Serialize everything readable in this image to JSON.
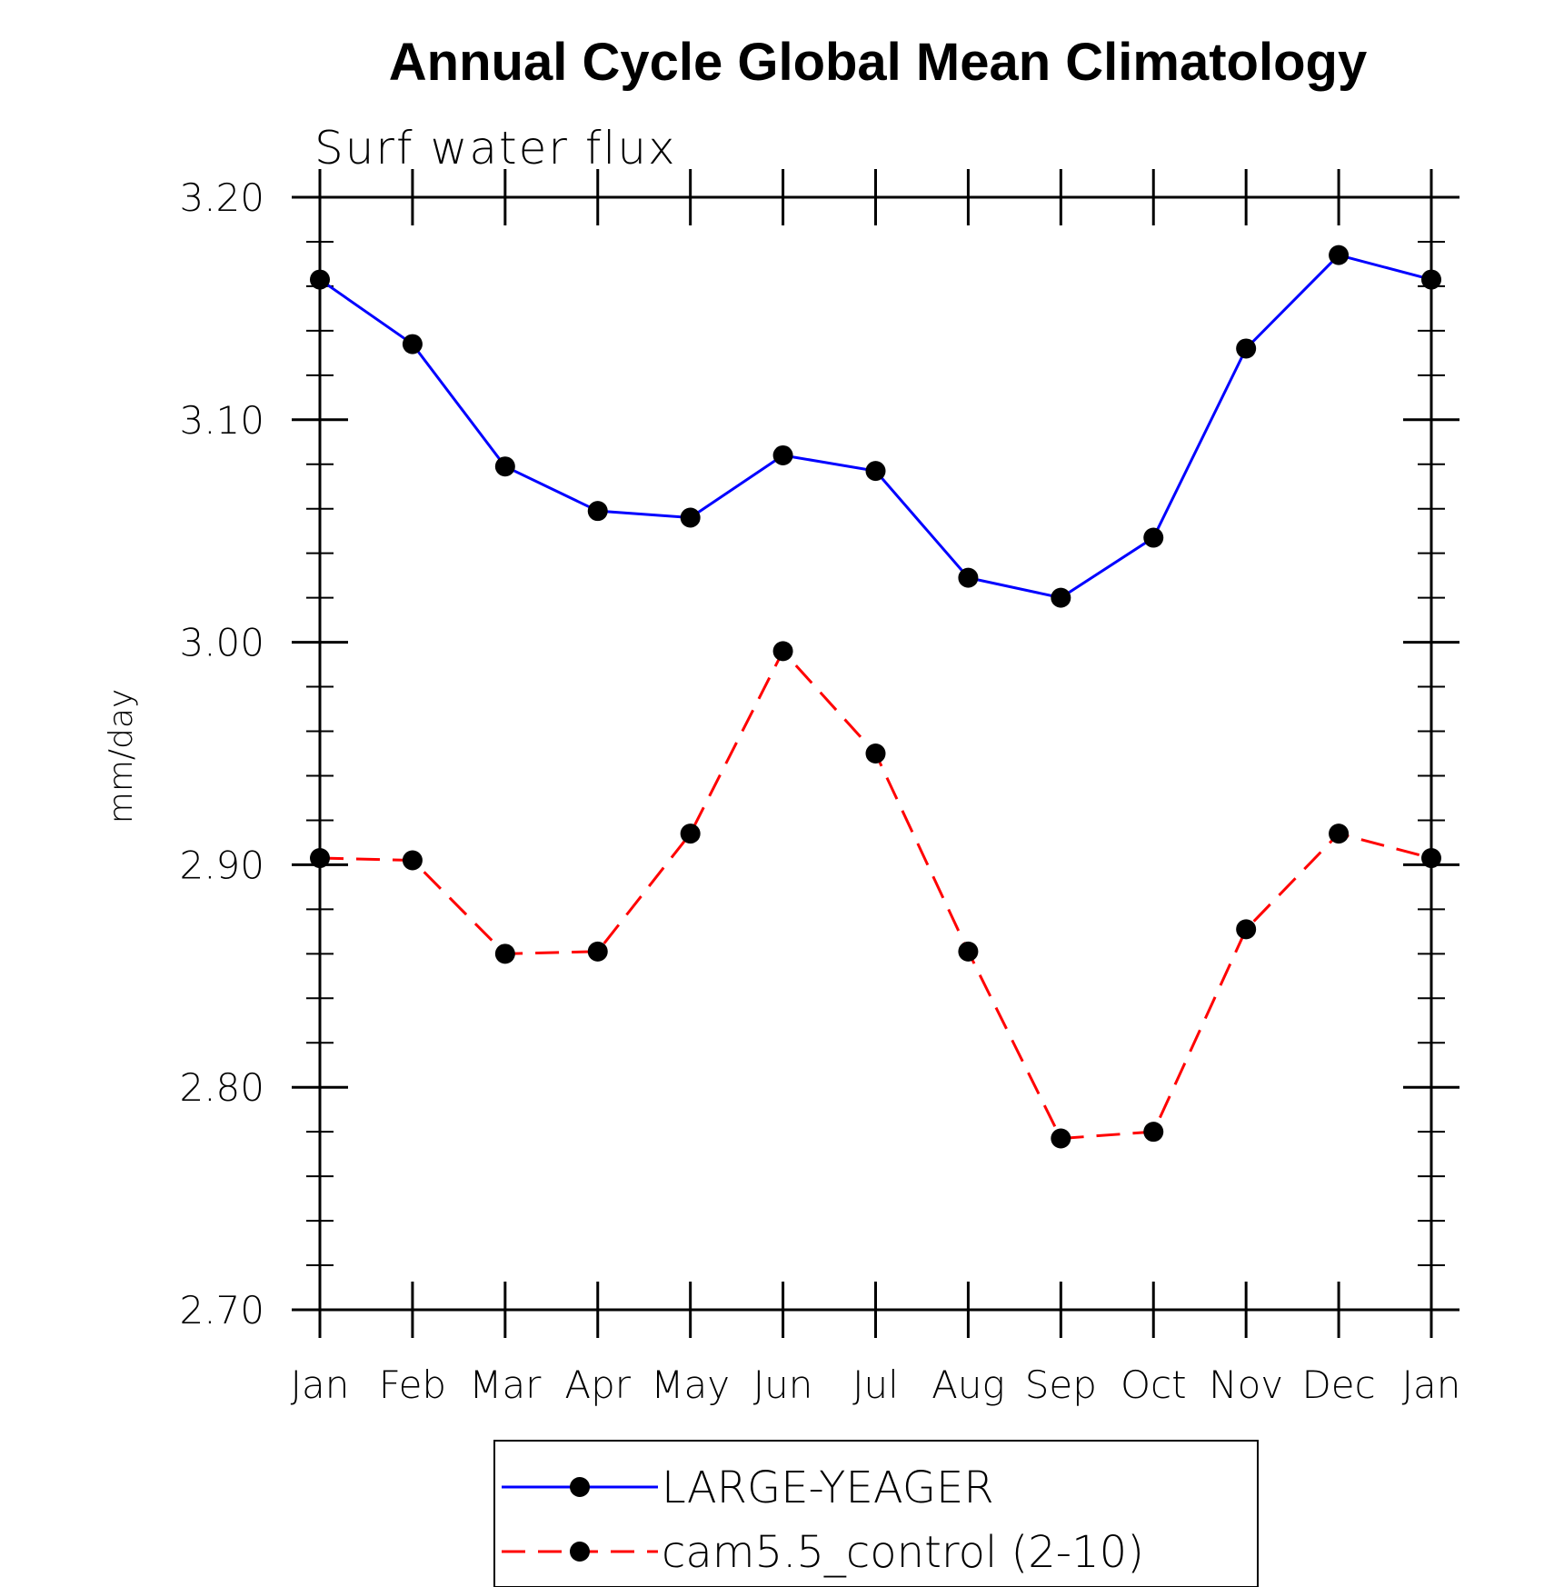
{
  "chart_data": {
    "type": "line",
    "title": "Annual Cycle Global Mean Climatology",
    "subtitle": "Surf water flux",
    "ylabel": "mm/day",
    "xlabel": "",
    "categories": [
      "Jan",
      "Feb",
      "Mar",
      "Apr",
      "May",
      "Jun",
      "Jul",
      "Aug",
      "Sep",
      "Oct",
      "Nov",
      "Dec",
      "Jan"
    ],
    "ylim": [
      2.7,
      3.2
    ],
    "yticks": [
      "2.70",
      "2.80",
      "2.90",
      "3.00",
      "3.10",
      "3.20"
    ],
    "ytick_values": [
      2.7,
      2.8,
      2.9,
      3.0,
      3.1,
      3.2
    ],
    "grid": false,
    "legend_position": "bottom",
    "series": [
      {
        "name": "LARGE-YEAGER",
        "color": "#0000ff",
        "line_style": "solid",
        "marker": "filled-circle",
        "values": [
          3.163,
          3.134,
          3.079,
          3.059,
          3.056,
          3.084,
          3.077,
          3.029,
          3.02,
          3.047,
          3.132,
          3.174,
          3.163
        ]
      },
      {
        "name": "cam5.5_control (2-10)",
        "color": "#ff0000",
        "line_style": "dashed",
        "marker": "filled-circle",
        "values": [
          2.903,
          2.902,
          2.86,
          2.861,
          2.914,
          2.996,
          2.95,
          2.861,
          2.777,
          2.78,
          2.871,
          2.914,
          2.903
        ]
      }
    ]
  }
}
